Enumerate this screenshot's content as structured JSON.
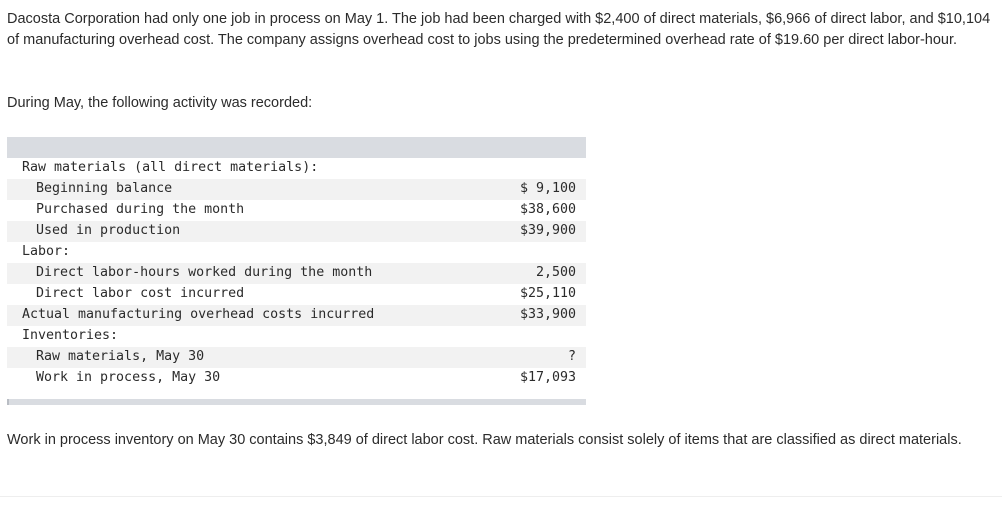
{
  "intro": "Dacosta Corporation had only one job in process on May 1. The job had been charged with $2,400 of direct materials, $6,966 of direct labor, and $10,104 of manufacturing overhead cost. The company assigns overhead cost to jobs using the predetermined overhead rate of $19.60 per direct labor-hour.",
  "activity_lead": "During May, the following activity was recorded:",
  "table": {
    "rows": [
      {
        "label": "Raw materials (all direct materials):",
        "value": ""
      },
      {
        "label": "Beginning balance",
        "value": "$ 9,100"
      },
      {
        "label": "Purchased during the month",
        "value": "$38,600"
      },
      {
        "label": "Used in production",
        "value": "$39,900"
      },
      {
        "label": "Labor:",
        "value": ""
      },
      {
        "label": "Direct labor-hours worked during the month",
        "value": "2,500"
      },
      {
        "label": "Direct labor cost incurred",
        "value": "$25,110"
      },
      {
        "label": "Actual manufacturing overhead costs incurred",
        "value": "$33,900"
      },
      {
        "label": "Inventories:",
        "value": ""
      },
      {
        "label": "Raw materials, May 30",
        "value": "?"
      },
      {
        "label": "Work in process, May 30",
        "value": "$17,093"
      }
    ]
  },
  "note": "Work in process inventory on May 30 contains $3,849 of direct labor cost. Raw materials consist solely of items that are classified as direct materials."
}
